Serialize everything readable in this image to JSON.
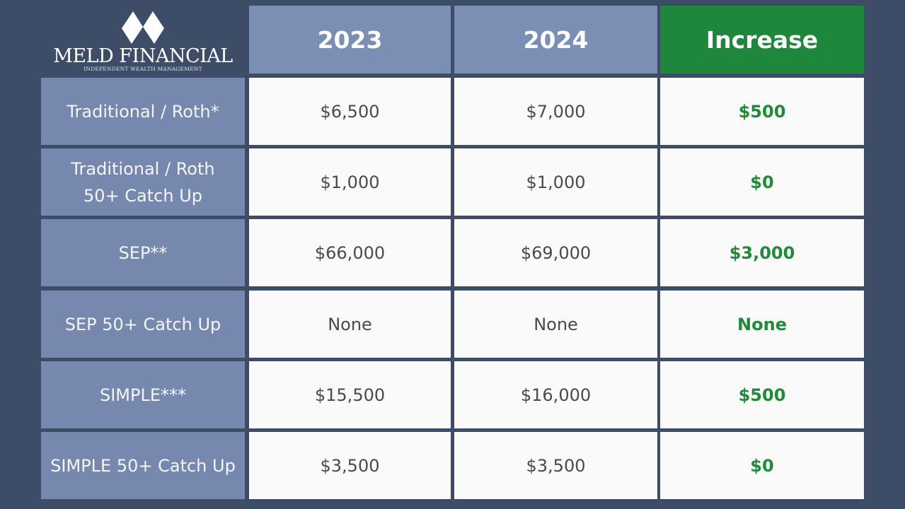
{
  "logo": {
    "name": "MELD FINANCIAL",
    "tagline": "INDEPENDENT WEALTH MANAGEMENT"
  },
  "colors": {
    "background": "#3e4d67",
    "header": "#7b8fb5",
    "increase_header": "#1f873c",
    "increase_text": "#22893a"
  },
  "chart_data": {
    "type": "table",
    "columns": [
      "2023",
      "2024",
      "Increase"
    ],
    "rows": [
      {
        "label": "Traditional / Roth*",
        "values": [
          "$6,500",
          "$7,000",
          "$500"
        ]
      },
      {
        "label": "Traditional / Roth 50+ Catch Up",
        "values": [
          "$1,000",
          "$1,000",
          "$0"
        ]
      },
      {
        "label": "SEP**",
        "values": [
          "$66,000",
          "$69,000",
          "$3,000"
        ]
      },
      {
        "label": "SEP 50+ Catch Up",
        "values": [
          "None",
          "None",
          "None"
        ]
      },
      {
        "label": "SIMPLE***",
        "values": [
          "$15,500",
          "$16,000",
          "$500"
        ]
      },
      {
        "label": "SIMPLE 50+ Catch Up",
        "values": [
          "$3,500",
          "$3,500",
          "$0"
        ]
      }
    ]
  }
}
